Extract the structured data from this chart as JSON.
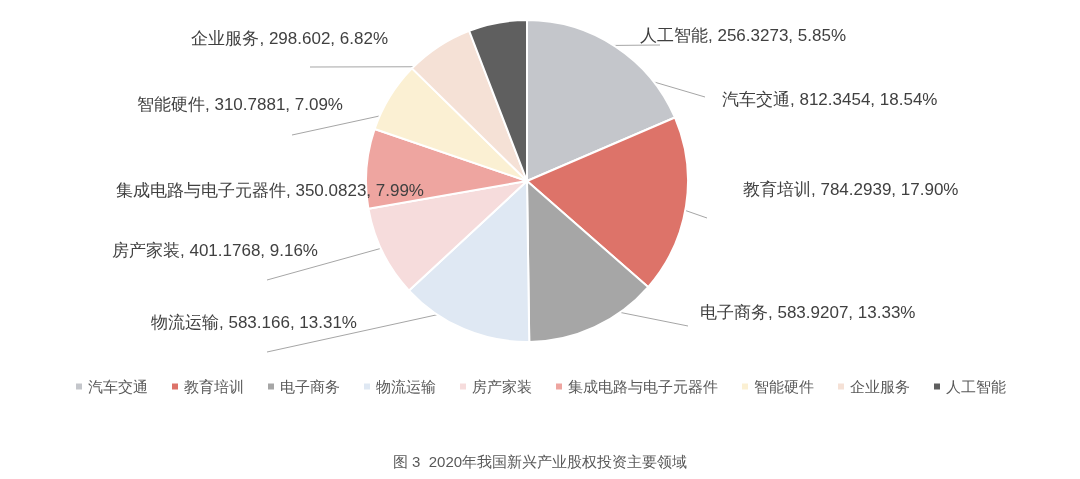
{
  "chart_data": {
    "type": "pie",
    "title": "图 3  2020年我国新兴产业股权投资主要领域",
    "categories": [
      "汽车交通",
      "教育培训",
      "电子商务",
      "物流运输",
      "房产家装",
      "集成电路与电子元器件",
      "智能硬件",
      "企业服务",
      "人工智能"
    ],
    "values": [
      812.3454,
      784.2939,
      583.9207,
      583.166,
      401.1768,
      350.0823,
      310.7881,
      298.602,
      256.3273
    ],
    "value_labels": [
      "汽车交通, 812.3454, 18.54%",
      "教育培训, 784.2939, 17.90%",
      "电子商务, 583.9207, 13.33%",
      "物流运输, 583.166, 13.31%",
      "房产家装, 401.1768, 9.16%",
      "集成电路与电子元器件, 350.0823, 7.99%",
      "智能硬件, 310.7881, 7.09%",
      "企业服务, 298.602, 6.82%",
      "人工智能, 256.3273, 5.85%"
    ],
    "colors": [
      "#c4c6cb",
      "#dd7369",
      "#a6a6a6",
      "#dfe8f3",
      "#f6dcdc",
      "#eea5a0",
      "#fbf0d3",
      "#f5e1d6",
      "#5f5f5f"
    ],
    "legend": "bottom"
  }
}
